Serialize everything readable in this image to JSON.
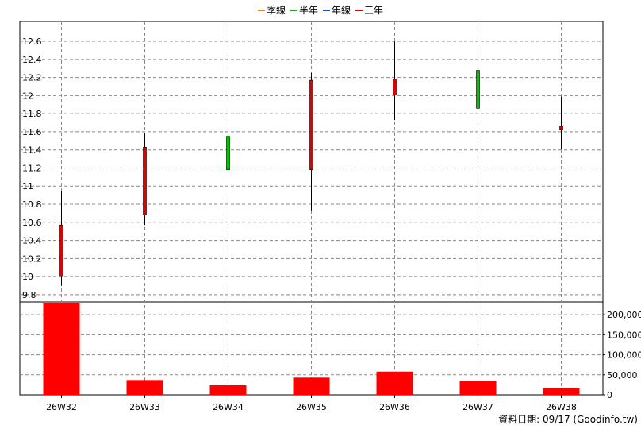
{
  "legend": [
    {
      "name": "季線",
      "color": "#ff8000"
    },
    {
      "name": "半年",
      "color": "#00c000"
    },
    {
      "name": "年線",
      "color": "#0050ff"
    },
    {
      "name": "三年",
      "color": "#e00000"
    }
  ],
  "credit": "資料日期: 09/17 (Goodinfo.tw)",
  "colors": {
    "up": "#e00000",
    "down": "#00c000",
    "volume": "#ff0000",
    "wick": "#000000",
    "grid": "#888888"
  },
  "chart_data": [
    {
      "type": "candlestick",
      "categories": [
        "26W32",
        "26W33",
        "26W34",
        "26W35",
        "26W36",
        "26W37",
        "26W38"
      ],
      "series": [
        {
          "open": 10.0,
          "high": 10.95,
          "low": 9.9,
          "close": 10.57
        },
        {
          "open": 10.68,
          "high": 11.58,
          "low": 10.57,
          "close": 11.43
        },
        {
          "open": 11.55,
          "high": 11.73,
          "low": 10.98,
          "close": 11.18
        },
        {
          "open": 11.18,
          "high": 12.25,
          "low": 10.73,
          "close": 12.17
        },
        {
          "open": 12.01,
          "high": 12.6,
          "low": 11.73,
          "close": 12.18
        },
        {
          "open": 12.28,
          "high": 12.28,
          "low": 11.67,
          "close": 11.86
        },
        {
          "open": 11.62,
          "high": 11.99,
          "low": 11.41,
          "close": 11.66
        }
      ],
      "y_ticks": [
        "9.8",
        "10",
        "10.2",
        "10.4",
        "10.6",
        "10.8",
        "11",
        "11.2",
        "11.4",
        "11.6",
        "11.8",
        "12",
        "12.2",
        "12.4",
        "12.6"
      ],
      "ylim": [
        9.72,
        12.82
      ],
      "grid": true
    },
    {
      "type": "bar",
      "categories": [
        "26W32",
        "26W33",
        "26W34",
        "26W35",
        "26W36",
        "26W37",
        "26W38"
      ],
      "values": [
        228000,
        37000,
        24000,
        43000,
        58000,
        35000,
        17000
      ],
      "y_ticks": [
        "0",
        "50,000",
        "100,000",
        "150,000",
        "200,000"
      ],
      "ylim": [
        0,
        232000
      ],
      "grid": true
    }
  ]
}
